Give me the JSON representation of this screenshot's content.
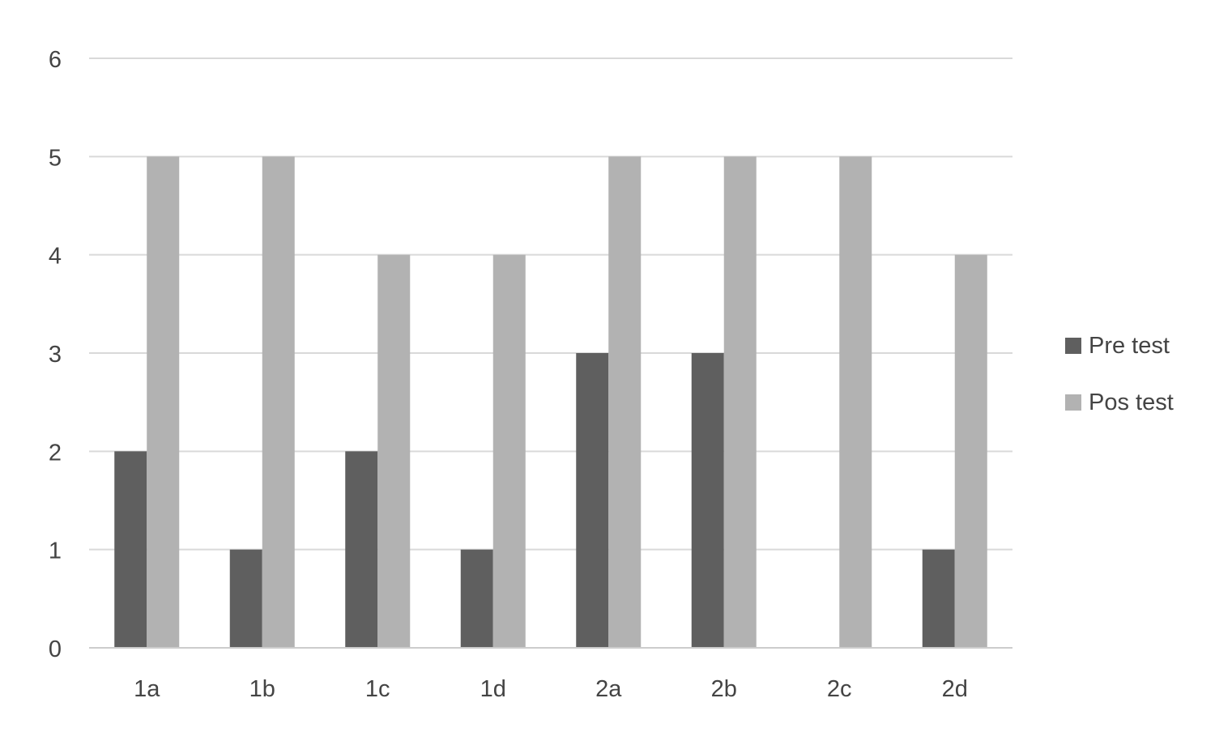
{
  "chart_data": {
    "type": "bar",
    "categories": [
      "1a",
      "1b",
      "1c",
      "1d",
      "2a",
      "2b",
      "2c",
      "2d"
    ],
    "series": [
      {
        "name": "Pre test",
        "values": [
          2,
          1,
          2,
          1,
          3,
          3,
          0,
          1
        ],
        "color": "#5f5f5f"
      },
      {
        "name": "Pos test",
        "values": [
          5,
          5,
          4,
          4,
          5,
          5,
          5,
          4
        ],
        "color": "#b2b2b2"
      }
    ],
    "yticks": [
      "0",
      "1",
      "2",
      "3",
      "4",
      "5",
      "6"
    ],
    "ylim": [
      0,
      6
    ],
    "grid": true,
    "legend_position": "right"
  },
  "colors": {
    "gridline": "#d9d9d9",
    "axis": "#cccccc",
    "text": "#444444"
  }
}
